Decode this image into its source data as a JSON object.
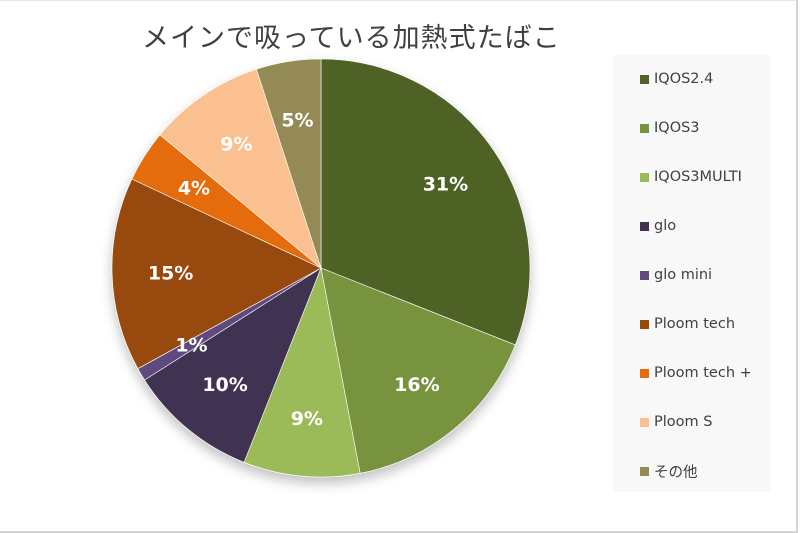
{
  "chart_data": {
    "type": "pie",
    "title": "メインで吸っている加熱式たばこ",
    "categories": [
      "IQOS2.4",
      "IQOS3",
      "IQOS3MULTI",
      "glo",
      "glo mini",
      "Ploom tech",
      "Ploom tech +",
      "Ploom S",
      "その他"
    ],
    "values": [
      31,
      16,
      9,
      10,
      1,
      15,
      4,
      9,
      5
    ],
    "labels": [
      "31%",
      "16%",
      "9%",
      "10%",
      "1%",
      "15%",
      "4%",
      "9%",
      "5%"
    ],
    "colors": [
      "#4f6228",
      "#77933c",
      "#9bbb59",
      "#403151",
      "#604a7b",
      "#984807",
      "#e46c0a",
      "#fac090",
      "#948a54"
    ],
    "legend_position": "right",
    "start_angle": "top, clockwise"
  },
  "title": "メインで吸っている加熱式たばこ",
  "legend": {
    "items": [
      {
        "label": "IQOS2.4",
        "color": "#4f6228"
      },
      {
        "label": "IQOS3",
        "color": "#77933c"
      },
      {
        "label": "IQOS3MULTI",
        "color": "#9bbb59"
      },
      {
        "label": "glo",
        "color": "#403151"
      },
      {
        "label": "glo mini",
        "color": "#604a7b"
      },
      {
        "label": "Ploom tech",
        "color": "#984807"
      },
      {
        "label": "Ploom tech +",
        "color": "#e46c0a"
      },
      {
        "label": "Ploom S",
        "color": "#fac090"
      },
      {
        "label": "その他",
        "color": "#948a54"
      }
    ]
  }
}
